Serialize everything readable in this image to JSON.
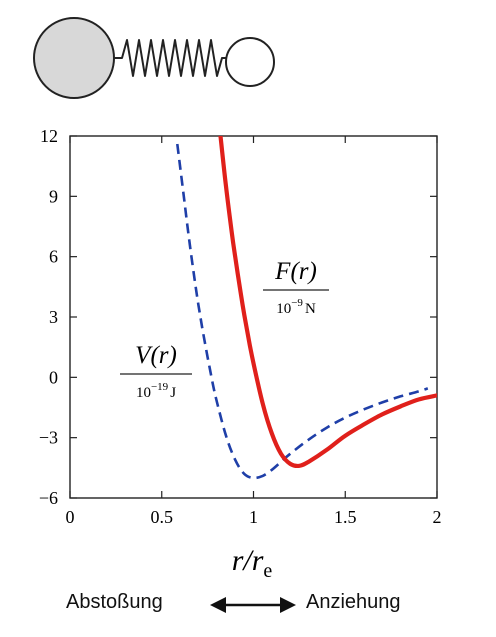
{
  "illustration": {
    "icon": "two-atom-spring-icon",
    "large_atom_color": "#d8d8d8",
    "small_atom_color": "#ffffff"
  },
  "chart_data": {
    "type": "line",
    "xlim": [
      0,
      2
    ],
    "ylim": [
      -6,
      12
    ],
    "xticks": [
      0,
      0.5,
      1,
      1.5,
      2
    ],
    "xtick_labels": [
      "0",
      "0.5",
      "1",
      "1.5",
      "2"
    ],
    "yticks": [
      -6,
      -3,
      0,
      3,
      6,
      9,
      12
    ],
    "ytick_labels": [
      "−6",
      "−3",
      "0",
      "3",
      "6",
      "9",
      "12"
    ],
    "xlabel": {
      "main": "r/r",
      "sub": "e"
    },
    "grid": false,
    "series": [
      {
        "name": "V(r)",
        "unit_label": {
          "base": "10",
          "exp": "−19",
          "unit": "J"
        },
        "color": "#1f3fa8",
        "style": "dashed",
        "x": [
          0.585,
          0.62,
          0.65,
          0.68,
          0.7,
          0.72,
          0.75,
          0.78,
          0.8,
          0.85,
          0.9,
          0.95,
          1.0,
          1.05,
          1.1,
          1.15,
          1.2,
          1.3,
          1.4,
          1.5,
          1.6,
          1.7,
          1.8,
          1.9,
          1.95
        ],
        "y": [
          11.6,
          9.0,
          6.8,
          4.8,
          3.6,
          2.5,
          1.0,
          -0.4,
          -1.2,
          -2.9,
          -4.1,
          -4.8,
          -5.0,
          -4.9,
          -4.6,
          -4.2,
          -3.8,
          -3.1,
          -2.5,
          -2.0,
          -1.6,
          -1.25,
          -0.95,
          -0.7,
          -0.55
        ]
      },
      {
        "name": "F(r)",
        "unit_label": {
          "base": "10",
          "exp": "−9",
          "unit": "N"
        },
        "color": "#e0201b",
        "style": "solid",
        "x": [
          0.82,
          0.85,
          0.88,
          0.9,
          0.93,
          0.95,
          0.98,
          1.0,
          1.05,
          1.1,
          1.15,
          1.2,
          1.25,
          1.3,
          1.4,
          1.5,
          1.6,
          1.7,
          1.8,
          1.9,
          2.0
        ],
        "y": [
          12.0,
          9.5,
          7.3,
          6.0,
          4.2,
          3.1,
          1.6,
          0.7,
          -1.3,
          -2.8,
          -3.8,
          -4.3,
          -4.4,
          -4.2,
          -3.6,
          -2.9,
          -2.35,
          -1.85,
          -1.45,
          -1.1,
          -0.9
        ]
      }
    ]
  },
  "caption": {
    "left": "Abstoßung",
    "right": "Anziehung",
    "arrow_icon": "double-arrow-icon"
  }
}
